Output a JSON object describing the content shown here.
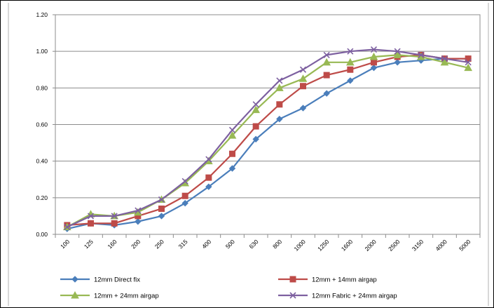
{
  "chart_data": {
    "type": "line",
    "title": "",
    "xlabel": "",
    "ylabel": "",
    "categories": [
      "100",
      "125",
      "160",
      "200",
      "250",
      "315",
      "400",
      "500",
      "630",
      "800",
      "1000",
      "1250",
      "1600",
      "2000",
      "2500",
      "3150",
      "4000",
      "5000"
    ],
    "ylim": [
      0,
      1.2
    ],
    "yticks": [
      "0.00",
      "0.20",
      "0.40",
      "0.60",
      "0.80",
      "1.00",
      "1.20"
    ],
    "grid": "horizontal",
    "legend_position": "bottom",
    "series": [
      {
        "name": "12mm Direct fix",
        "color": "#4a7ebb",
        "marker": "diamond",
        "values": [
          0.03,
          0.06,
          0.05,
          0.07,
          0.1,
          0.17,
          0.26,
          0.36,
          0.52,
          0.63,
          0.69,
          0.77,
          0.84,
          0.91,
          0.94,
          0.95,
          0.96,
          0.96
        ]
      },
      {
        "name": "12mm + 14mm airgap",
        "color": "#be4b48",
        "marker": "square",
        "values": [
          0.05,
          0.06,
          0.06,
          0.1,
          0.14,
          0.21,
          0.31,
          0.44,
          0.59,
          0.71,
          0.81,
          0.87,
          0.9,
          0.94,
          0.97,
          0.98,
          0.96,
          0.96
        ]
      },
      {
        "name": "12mm + 24mm airgap",
        "color": "#98b954",
        "marker": "triangle",
        "values": [
          0.04,
          0.11,
          0.1,
          0.12,
          0.19,
          0.28,
          0.4,
          0.54,
          0.68,
          0.8,
          0.85,
          0.94,
          0.94,
          0.97,
          0.98,
          0.97,
          0.94,
          0.91
        ]
      },
      {
        "name": "12mm Fabric + 24mm airgap",
        "color": "#7d60a0",
        "marker": "x",
        "values": [
          0.04,
          0.1,
          0.1,
          0.13,
          0.19,
          0.29,
          0.41,
          0.57,
          0.71,
          0.84,
          0.9,
          0.98,
          1.0,
          1.01,
          1.0,
          0.98,
          0.96,
          0.94
        ]
      }
    ]
  }
}
